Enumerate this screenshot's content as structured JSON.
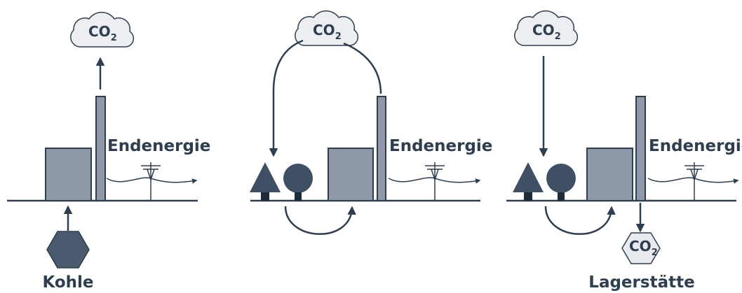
{
  "panels": [
    {
      "cloud": {
        "base": "CO",
        "sub": "2"
      },
      "label": "Endenergie",
      "source": "Kohle"
    },
    {
      "cloud": {
        "base": "CO",
        "sub": "2"
      },
      "label": "Endenergie"
    },
    {
      "cloud": {
        "base": "CO",
        "sub": "2"
      },
      "label": "Endenergie",
      "storage": {
        "base": "CO",
        "sub": "2"
      },
      "storage_label": "Lagerstätte"
    }
  ]
}
